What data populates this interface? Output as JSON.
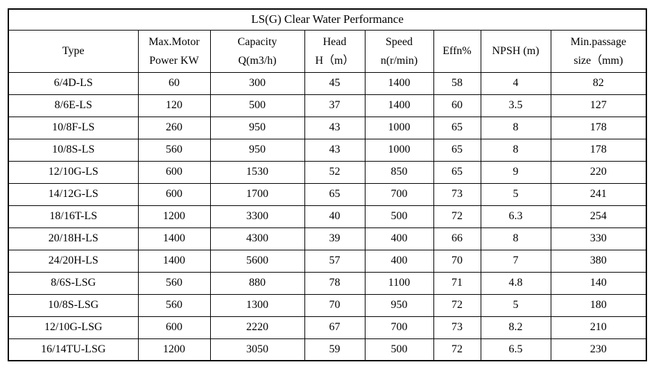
{
  "title": "LS(G) Clear Water Performance",
  "table": {
    "headers": [
      {
        "line1": "Type",
        "line2": ""
      },
      {
        "line1": "Max.Motor",
        "line2": "Power KW"
      },
      {
        "line1": "Capacity",
        "line2": "Q(m3/h)"
      },
      {
        "line1": "Head",
        "line2": "H（m）"
      },
      {
        "line1": "Speed",
        "line2": "n(r/min)"
      },
      {
        "line1": "Effn%",
        "line2": ""
      },
      {
        "line1": "NPSH (m)",
        "line2": ""
      },
      {
        "line1": "Min.passage",
        "line2": "size（mm)"
      }
    ],
    "rows": [
      {
        "cells": [
          "6/4D-LS",
          "60",
          "300",
          "45",
          "1400",
          "58",
          "4",
          "82"
        ]
      },
      {
        "cells": [
          "8/6E-LS",
          "120",
          "500",
          "37",
          "1400",
          "60",
          "3.5",
          "127"
        ]
      },
      {
        "cells": [
          "10/8F-LS",
          "260",
          "950",
          "43",
          "1000",
          "65",
          "8",
          "178"
        ]
      },
      {
        "cells": [
          "10/8S-LS",
          "560",
          "950",
          "43",
          "1000",
          "65",
          "8",
          "178"
        ]
      },
      {
        "cells": [
          "12/10G-LS",
          "600",
          "1530",
          "52",
          "850",
          "65",
          "9",
          "220"
        ]
      },
      {
        "cells": [
          "14/12G-LS",
          "600",
          "1700",
          "65",
          "700",
          "73",
          "5",
          "241"
        ]
      },
      {
        "cells": [
          "18/16T-LS",
          "1200",
          "3300",
          "40",
          "500",
          "72",
          "6.3",
          "254"
        ]
      },
      {
        "cells": [
          "20/18H-LS",
          "1400",
          "4300",
          "39",
          "400",
          "66",
          "8",
          "330"
        ]
      },
      {
        "cells": [
          "24/20H-LS",
          "1400",
          "5600",
          "57",
          "400",
          "70",
          "7",
          "380"
        ]
      },
      {
        "cells": [
          "8/6S-LSG",
          "560",
          "880",
          "78",
          "1100",
          "71",
          "4.8",
          "140"
        ]
      },
      {
        "cells": [
          "10/8S-LSG",
          "560",
          "1300",
          "70",
          "950",
          "72",
          "5",
          "180"
        ]
      },
      {
        "cells": [
          "12/10G-LSG",
          "600",
          "2220",
          "67",
          "700",
          "73",
          "8.2",
          "210"
        ]
      },
      {
        "cells": [
          "16/14TU-LSG",
          "1200",
          "3050",
          "59",
          "500",
          "72",
          "6.5",
          "230"
        ]
      }
    ]
  },
  "colors": {
    "border": "#000000",
    "text": "#000000",
    "background": "#ffffff"
  }
}
